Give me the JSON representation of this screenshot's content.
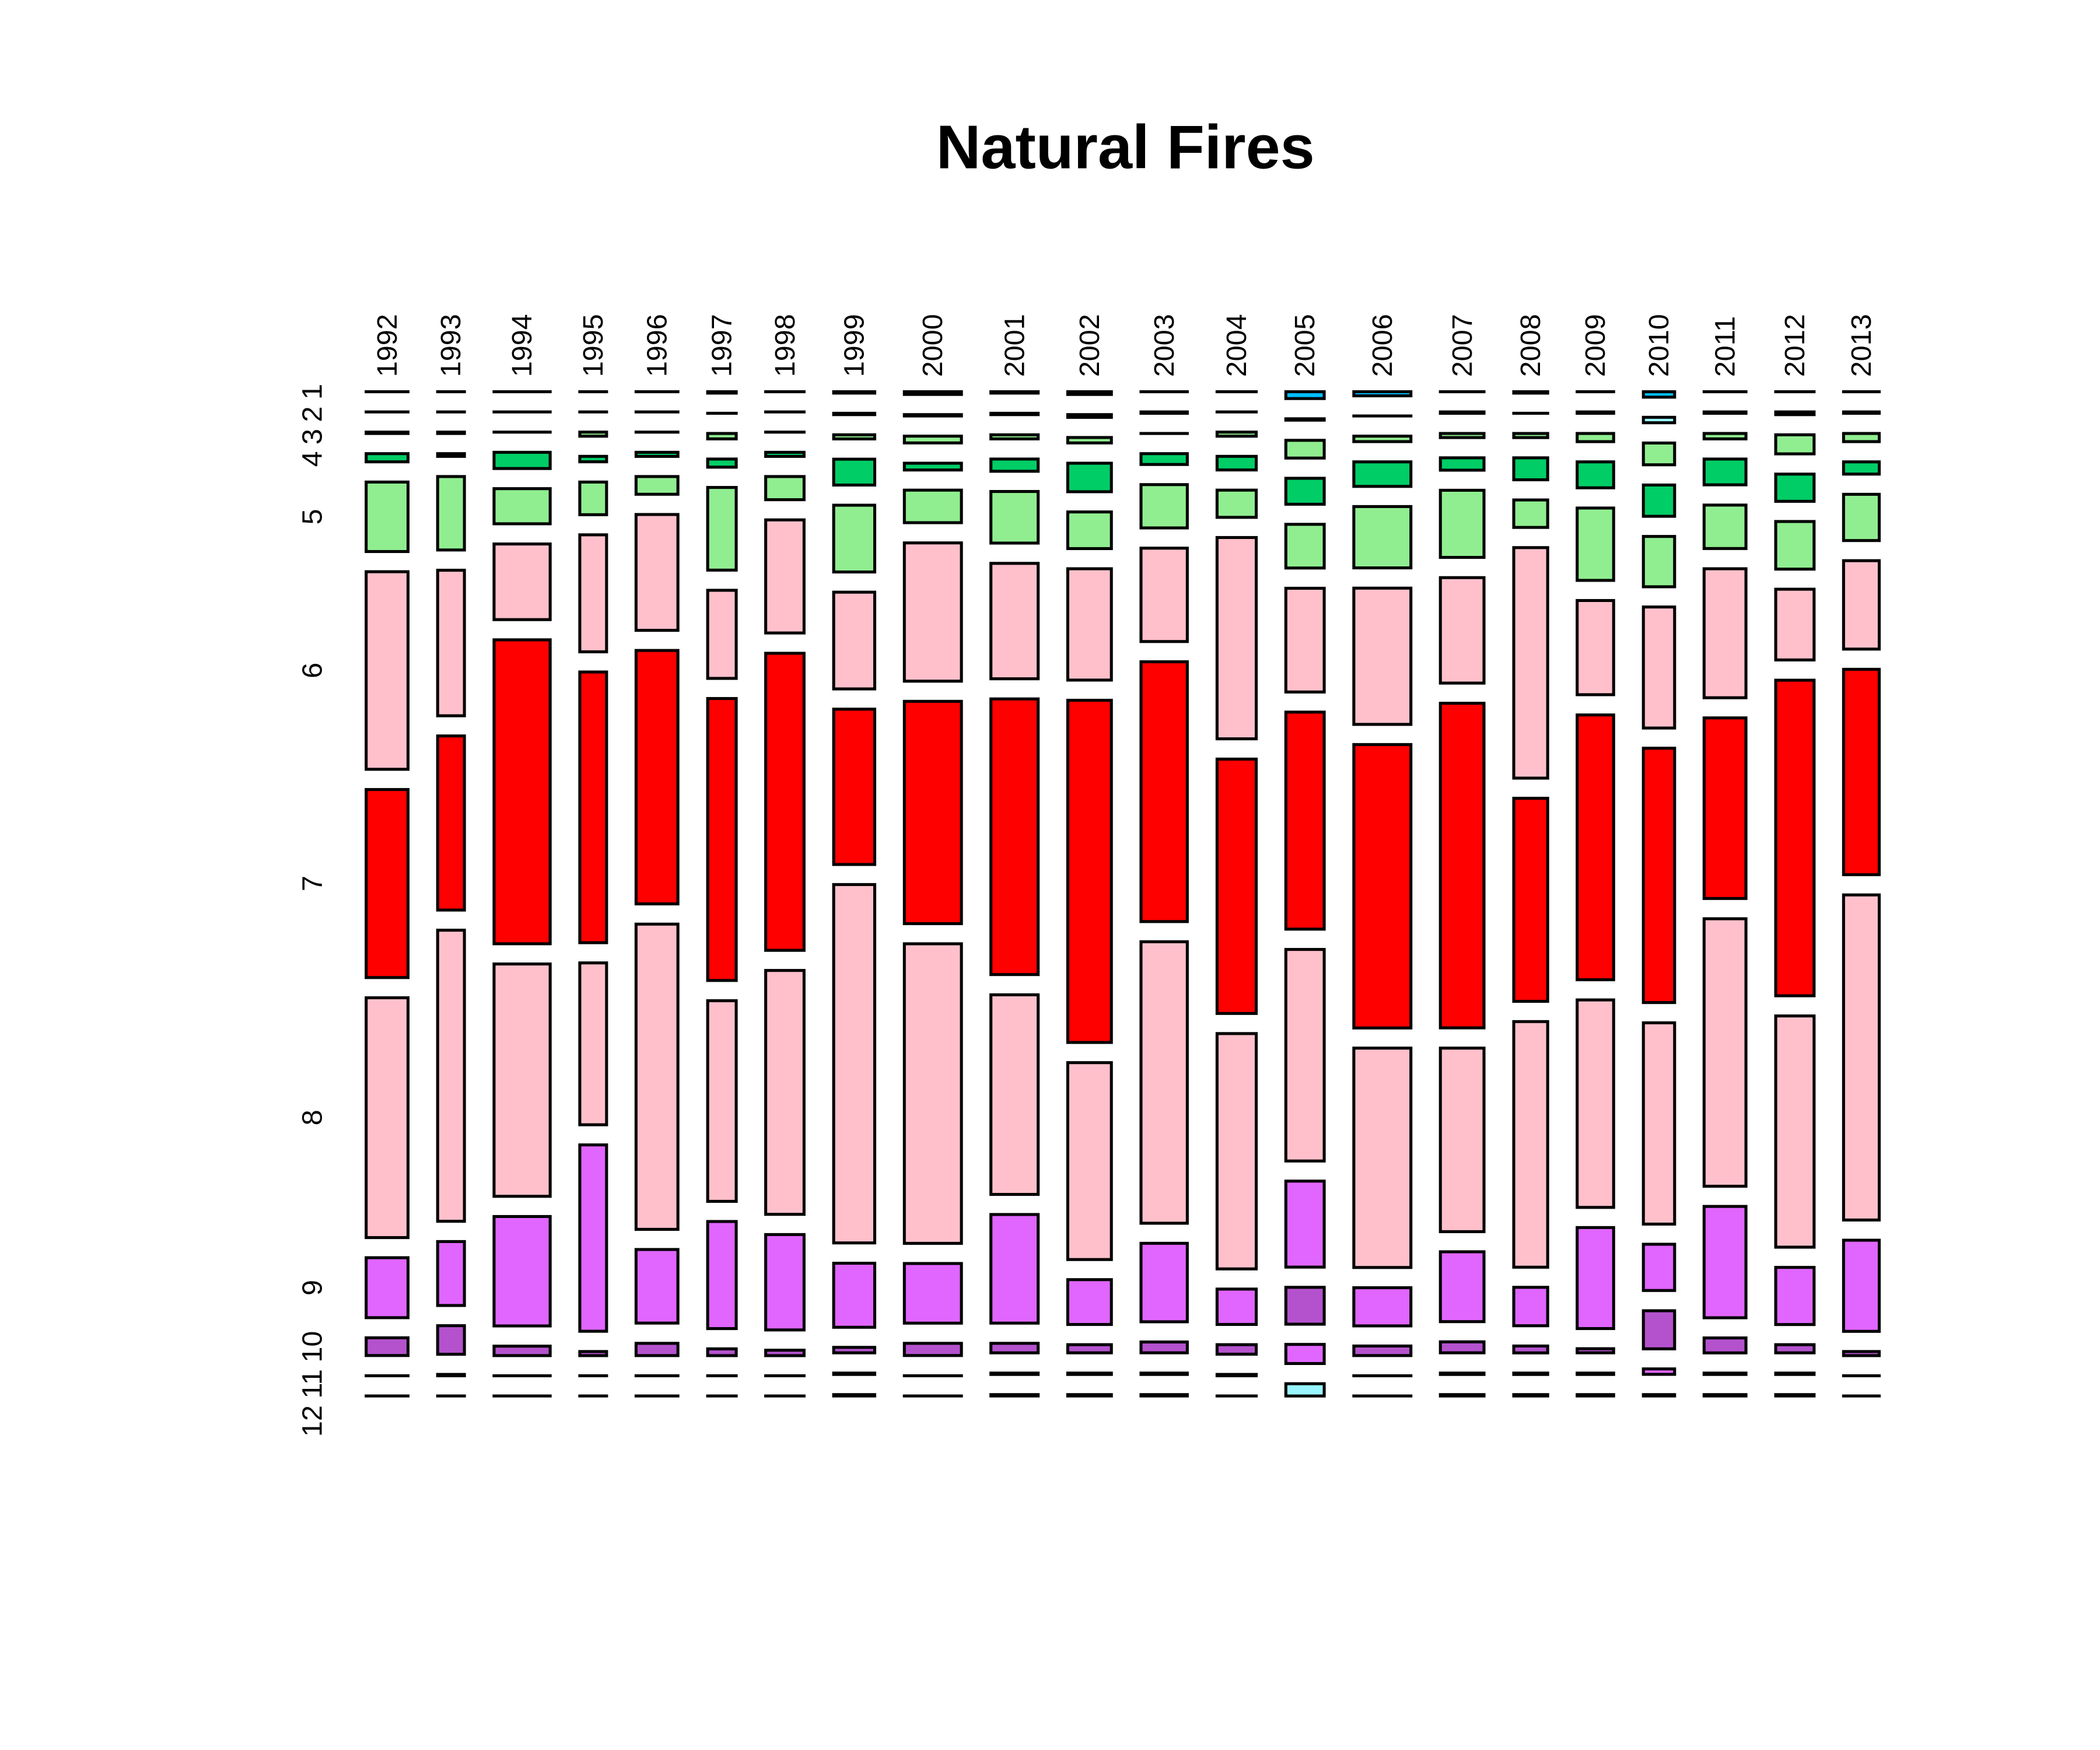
{
  "chart_data": {
    "type": "mosaic",
    "title": "Natural Fires",
    "xlabel": "",
    "ylabel": "",
    "x_variable": "year",
    "y_variable": "month",
    "categories": [
      "1992",
      "1993",
      "1994",
      "1995",
      "1996",
      "1997",
      "1998",
      "1999",
      "2000",
      "2001",
      "2002",
      "2003",
      "2004",
      "2005",
      "2006",
      "2007",
      "2008",
      "2009",
      "2010",
      "2011",
      "2012",
      "2013"
    ],
    "year_share_percent": [
      4.7,
      3.0,
      6.3,
      3.0,
      4.7,
      3.2,
      4.3,
      4.6,
      6.4,
      5.3,
      4.9,
      5.2,
      4.4,
      4.3,
      6.4,
      4.9,
      3.8,
      4.1,
      3.5,
      4.7,
      4.3,
      4.0
    ],
    "months": [
      "1",
      "2",
      "3",
      "4",
      "5",
      "6",
      "7",
      "8",
      "9",
      "10",
      "11",
      "12"
    ],
    "month_colors": [
      "#00BFFF",
      "#98F5FF",
      "#90EE90",
      "#00CD66",
      "#90EE90",
      "#FFC0CB",
      "#FF0000",
      "#FFC0CB",
      "#E066FF",
      "#B452CD",
      "#E066FF",
      "#98F5FF"
    ],
    "month_relative_frequency": [
      [
        0,
        0,
        1,
        6,
        51,
        145,
        138,
        176,
        44,
        13,
        0,
        0
      ],
      [
        0,
        0,
        1,
        2,
        54,
        107,
        128,
        214,
        47,
        21,
        1,
        0
      ],
      [
        0,
        0,
        0,
        12,
        26,
        56,
        225,
        172,
        81,
        7,
        0,
        0
      ],
      [
        0,
        0,
        3,
        4,
        24,
        86,
        199,
        119,
        137,
        3,
        0,
        0
      ],
      [
        0,
        0,
        0,
        3,
        13,
        85,
        186,
        224,
        54,
        9,
        0,
        0
      ],
      [
        1,
        0,
        4,
        6,
        61,
        65,
        208,
        148,
        79,
        5,
        0,
        0
      ],
      [
        0,
        0,
        0,
        3,
        17,
        83,
        218,
        179,
        70,
        4,
        0,
        0
      ],
      [
        1,
        1,
        3,
        19,
        49,
        71,
        114,
        263,
        47,
        4,
        1,
        1
      ],
      [
        2,
        1,
        5,
        5,
        24,
        102,
        164,
        221,
        44,
        9,
        0,
        0
      ],
      [
        1,
        1,
        3,
        9,
        38,
        85,
        203,
        147,
        80,
        7,
        1,
        1
      ],
      [
        2,
        2,
        4,
        21,
        27,
        82,
        252,
        145,
        33,
        6,
        1,
        1
      ],
      [
        0,
        1,
        0,
        8,
        32,
        69,
        192,
        208,
        58,
        8,
        1,
        1
      ],
      [
        0,
        0,
        3,
        10,
        20,
        148,
        187,
        173,
        26,
        7,
        1,
        0
      ],
      [
        5,
        1,
        13,
        19,
        32,
        76,
        159,
        155,
        63,
        27,
        14,
        9
      ],
      [
        3,
        0,
        4,
        18,
        45,
        100,
        208,
        161,
        28,
        7,
        0,
        0
      ],
      [
        0,
        1,
        3,
        9,
        49,
        77,
        237,
        134,
        51,
        8,
        1,
        1
      ],
      [
        1,
        0,
        3,
        16,
        20,
        168,
        148,
        179,
        28,
        5,
        1,
        1
      ],
      [
        0,
        1,
        6,
        19,
        53,
        69,
        194,
        152,
        74,
        3,
        1,
        1
      ],
      [
        4,
        4,
        16,
        23,
        37,
        89,
        187,
        148,
        34,
        28,
        4,
        1
      ],
      [
        0,
        1,
        4,
        19,
        32,
        95,
        133,
        197,
        82,
        11,
        1,
        1
      ],
      [
        0,
        2,
        14,
        20,
        35,
        52,
        232,
        170,
        42,
        6,
        1,
        1
      ],
      [
        0,
        1,
        6,
        9,
        34,
        65,
        151,
        239,
        67,
        3,
        0,
        0
      ]
    ]
  }
}
